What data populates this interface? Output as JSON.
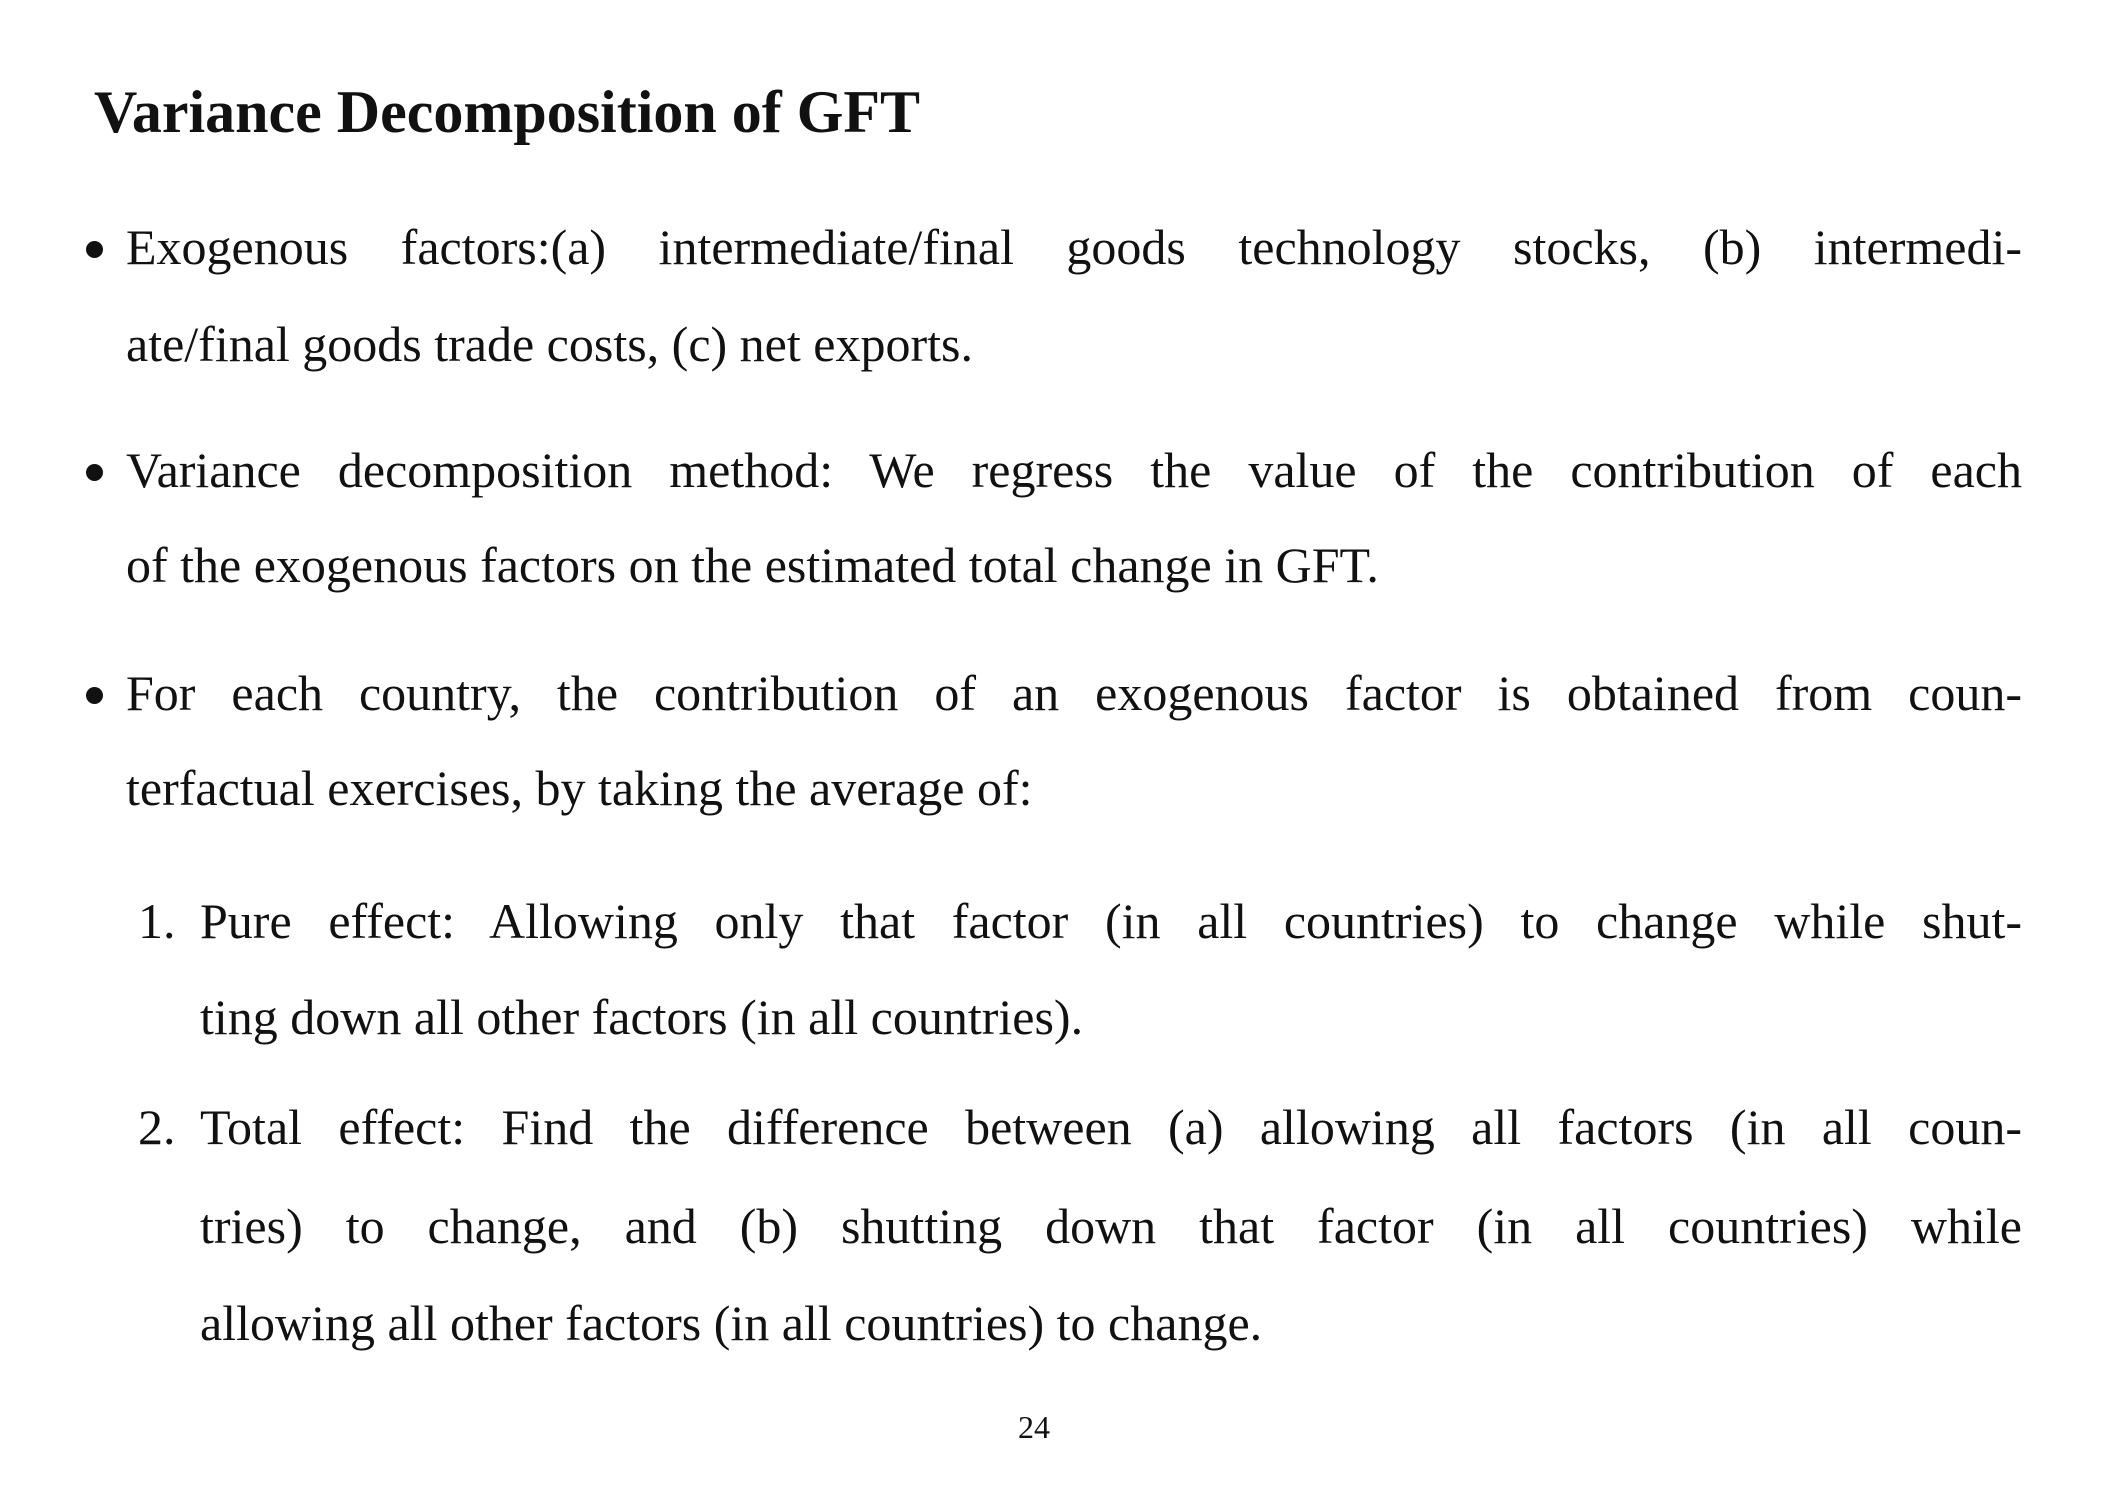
{
  "title": "Variance Decomposition of GFT",
  "bullets": [
    {
      "lines": [
        "Exogenous factors:(a) intermediate/final goods technology stocks, (b) intermedi-",
        "ate/final goods trade costs, (c) net exports."
      ]
    },
    {
      "lines": [
        "Variance decomposition method: We regress the value of the contribution of each",
        "of the exogenous factors on the estimated total change in GFT."
      ]
    },
    {
      "lines": [
        "For each country, the contribution of an exogenous factor is obtained from coun-",
        "terfactual exercises, by taking the average of:"
      ]
    }
  ],
  "numbered": [
    {
      "number": "1.",
      "lines": [
        "Pure effect: Allowing only that factor (in all countries) to change while shut-",
        "ting down all other factors (in all countries)."
      ]
    },
    {
      "number": "2.",
      "lines": [
        "Total effect: Find the difference between (a) allowing all factors (in all coun-",
        "tries) to change, and (b) shutting down that factor (in all countries) while",
        "allowing all other factors (in all countries) to change."
      ]
    }
  ],
  "page_number": "24"
}
